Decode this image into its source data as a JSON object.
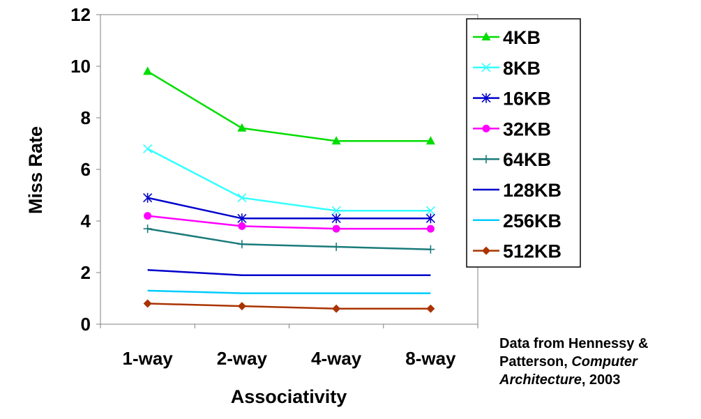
{
  "chart_data": {
    "type": "line",
    "title": "",
    "xlabel": "Associativity",
    "ylabel": "Miss Rate",
    "categories": [
      "1-way",
      "2-way",
      "4-way",
      "8-way"
    ],
    "ylim": [
      0,
      12
    ],
    "yticks": [
      0,
      2,
      4,
      6,
      8,
      10,
      12
    ],
    "grid": false,
    "legend_position": "right",
    "series": [
      {
        "name": "4KB",
        "values": [
          9.8,
          7.6,
          7.1,
          7.1
        ],
        "color": "#00dd00",
        "marker": "triangle"
      },
      {
        "name": "8KB",
        "values": [
          6.8,
          4.9,
          4.4,
          4.4
        ],
        "color": "#33ffff",
        "marker": "x"
      },
      {
        "name": "16KB",
        "values": [
          4.9,
          4.1,
          4.1,
          4.1
        ],
        "color": "#0000cc",
        "marker": "asterisk"
      },
      {
        "name": "32KB",
        "values": [
          4.2,
          3.8,
          3.7,
          3.7
        ],
        "color": "#ff00ff",
        "marker": "circle"
      },
      {
        "name": "64KB",
        "values": [
          3.7,
          3.1,
          3.0,
          2.9
        ],
        "color": "#1a7a7a",
        "marker": "plus"
      },
      {
        "name": "128KB",
        "values": [
          2.1,
          1.9,
          1.9,
          1.9
        ],
        "color": "#0000cc",
        "marker": "none"
      },
      {
        "name": "256KB",
        "values": [
          1.3,
          1.2,
          1.2,
          1.2
        ],
        "color": "#00ccff",
        "marker": "none"
      },
      {
        "name": "512KB",
        "values": [
          0.8,
          0.7,
          0.6,
          0.6
        ],
        "color": "#aa3300",
        "marker": "diamond"
      }
    ]
  },
  "source": {
    "line1": "Data from Hennessy &",
    "line2_prefix": "Patterson, ",
    "book": "Computer",
    "book2": "Architecture",
    "year_suffix": ", 2003"
  }
}
